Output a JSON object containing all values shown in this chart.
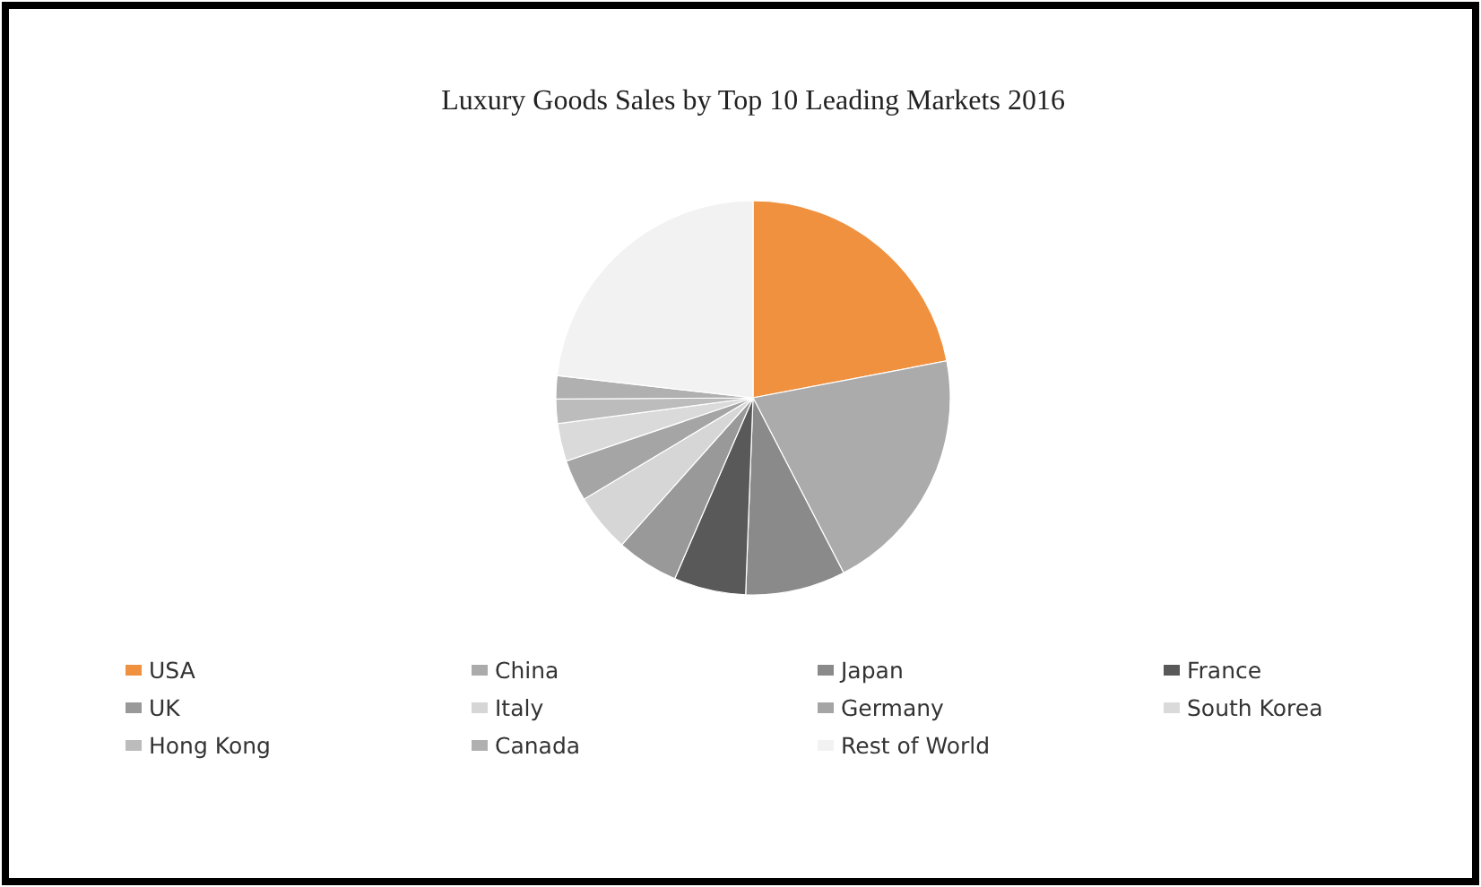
{
  "chart_data": {
    "type": "pie",
    "title": "Luxury Goods Sales by Top 10 Leading Markets 2016",
    "categories": [
      "USA",
      "China",
      "Japan",
      "France",
      "UK",
      "Italy",
      "Germany",
      "South Korea",
      "Hong Kong",
      "Canada",
      "Rest of World"
    ],
    "values": [
      22.0,
      20.4,
      8.2,
      5.9,
      5.1,
      4.8,
      3.4,
      3.1,
      2.0,
      1.9,
      23.2
    ],
    "colors": [
      "#f0913f",
      "#ababab",
      "#8a8a8a",
      "#595959",
      "#999999",
      "#d6d6d6",
      "#a5a5a5",
      "#dadada",
      "#bcbcbc",
      "#b0b0b0",
      "#f2f2f2"
    ],
    "legend": "bottom"
  }
}
